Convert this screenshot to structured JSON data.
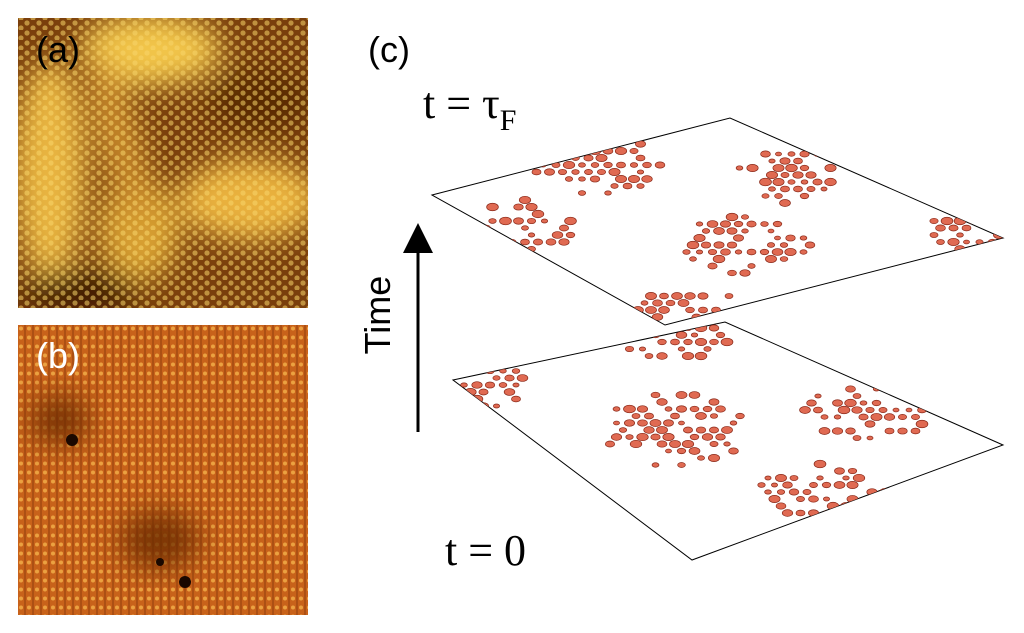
{
  "panels": {
    "a": {
      "label": "(a)"
    },
    "b": {
      "label": "(b)"
    },
    "c": {
      "label": "(c)",
      "time_axis": "Time",
      "top_plane": {
        "label": "t = τ",
        "subscript": "F"
      },
      "bottom_plane": {
        "label": "t = 0"
      }
    }
  }
}
